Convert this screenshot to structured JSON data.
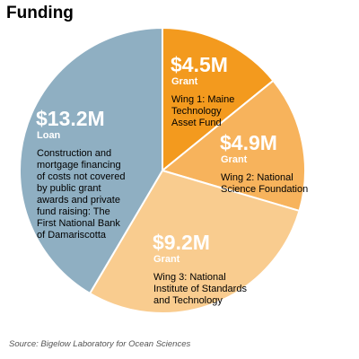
{
  "title": "Funding",
  "source": "Source: Bigelow Laboratory for Ocean Sciences",
  "chart_data": {
    "type": "pie",
    "title": "Funding",
    "unit": "$M",
    "slices": [
      {
        "value": 4.5,
        "amount_label": "$4.5M",
        "type_label": "Grant",
        "desc_lines": [
          "Wing 1: Maine",
          "Technology",
          "Asset Fund"
        ],
        "color": "#f39a1e"
      },
      {
        "value": 4.9,
        "amount_label": "$4.9M",
        "type_label": "Grant",
        "desc_lines": [
          "Wing 2: National",
          "Science Foundation"
        ],
        "color": "#f7b35c"
      },
      {
        "value": 9.2,
        "amount_label": "$9.2M",
        "type_label": "Grant",
        "desc_lines": [
          "Wing 3: National",
          "Institute of Standards",
          "and Technology"
        ],
        "color": "#f9cc8f"
      },
      {
        "value": 13.2,
        "amount_label": "$13.2M",
        "type_label": "Loan",
        "desc_lines": [
          "Construction and",
          "mortgage financing",
          "of costs not covered",
          "by public grant",
          "awards and private",
          "fund raising: The",
          "First National Bank",
          "of Damariscotta"
        ],
        "color": "#8fafc2"
      }
    ]
  }
}
